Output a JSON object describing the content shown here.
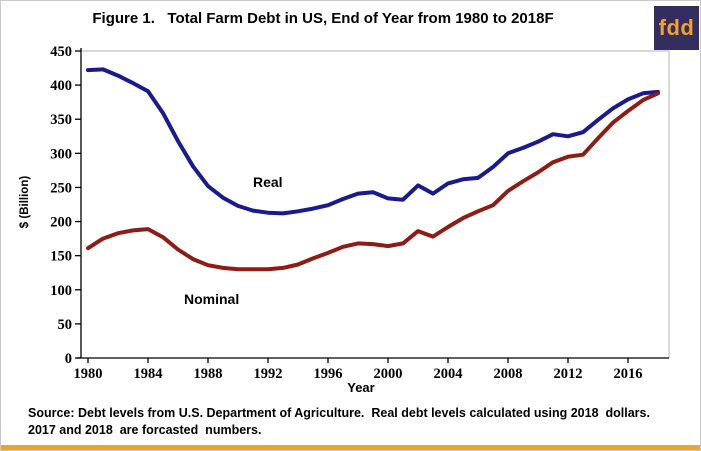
{
  "title": "Figure 1.   Total Farm Debt in US, End of Year from 1980 to 2018F",
  "logo": {
    "text": "fdd",
    "bg_color": "#332D60",
    "text_color": "#F2A12C"
  },
  "source_note": {
    "line1": "Source: Debt levels from U.S. Department of Agriculture.  Real debt levels calculated using 2018  dollars.",
    "line2": "2017 and 2018  are forcasted  numbers."
  },
  "accent_bar_color": "#EFA32F",
  "chart_data": {
    "type": "line",
    "title": "Figure 1.   Total Farm Debt in US, End of Year from 1980 to 2018F",
    "xlabel": "Year",
    "ylabel": "$ (Billion)",
    "xlim": [
      1980,
      2018
    ],
    "ylim": [
      0,
      450
    ],
    "y_ticks": [
      0,
      50,
      100,
      150,
      200,
      250,
      300,
      350,
      400,
      450
    ],
    "x_tick_labels": [
      "1980",
      "1984",
      "1988",
      "1992",
      "1996",
      "2000",
      "2004",
      "2008",
      "2012",
      "2016"
    ],
    "grid": "single top gridline at y=450; right plot border; no other gridlines",
    "legend": "inline labels on lines (Real above blue line, Nominal below red line)",
    "x": [
      1980,
      1981,
      1982,
      1983,
      1984,
      1985,
      1986,
      1987,
      1988,
      1989,
      1990,
      1991,
      1992,
      1993,
      1994,
      1995,
      1996,
      1997,
      1998,
      1999,
      2000,
      2001,
      2002,
      2003,
      2004,
      2005,
      2006,
      2007,
      2008,
      2009,
      2010,
      2011,
      2012,
      2013,
      2014,
      2015,
      2016,
      2017,
      2018
    ],
    "series": [
      {
        "name": "Real",
        "color": "#1A1A8F",
        "values": [
          422,
          423,
          414,
          403,
          391,
          359,
          318,
          281,
          252,
          235,
          223,
          216,
          213,
          212,
          215,
          219,
          224,
          233,
          241,
          243,
          234,
          232,
          253,
          241,
          256,
          262,
          264,
          280,
          300,
          308,
          317,
          328,
          325,
          331,
          349,
          366,
          379,
          388,
          390
        ]
      },
      {
        "name": "Nominal",
        "color": "#8E1B14",
        "values": [
          161,
          175,
          183,
          187,
          189,
          177,
          159,
          145,
          136,
          132,
          130,
          130,
          130,
          132,
          137,
          146,
          154,
          163,
          168,
          167,
          164,
          168,
          186,
          178,
          192,
          205,
          215,
          224,
          245,
          259,
          272,
          287,
          295,
          298,
          322,
          345,
          362,
          378,
          388
        ]
      }
    ],
    "annotations": [
      {
        "text": "Real",
        "color": "#1A1A8F"
      },
      {
        "text": "Nominal",
        "color": "#8E1B14"
      }
    ]
  }
}
